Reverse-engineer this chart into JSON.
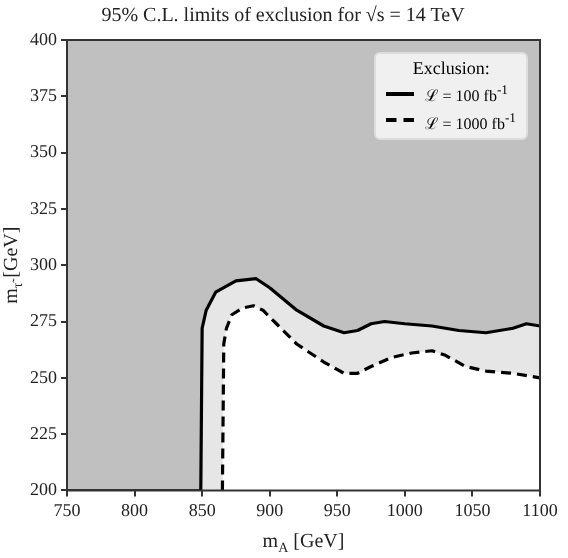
{
  "chart_data": {
    "type": "area",
    "title": "95% C.L. limits of exclusion for √s = 14 TeV",
    "xlabel": "m$_{A}$ [GeV]",
    "ylabel": "m$_{τ̃}$ [GeV]",
    "legend_title": "Exclusion:",
    "legend": "top right",
    "grid": false,
    "marker": "none",
    "xlim": [
      750,
      1100
    ],
    "xticks": [
      750,
      800,
      850,
      900,
      950,
      1000,
      1050,
      1100
    ],
    "ylim": [
      200,
      400
    ],
    "yticks": [
      200,
      225,
      250,
      275,
      300,
      325,
      350,
      375,
      400
    ],
    "series": [
      {
        "name": "ℒ = 100 fb$^{-1}$",
        "color": "#000000",
        "line_style": "solid",
        "x": [
          849,
          850,
          853,
          860,
          875,
          890,
          900,
          920,
          940,
          955,
          965,
          975,
          985,
          1000,
          1020,
          1040,
          1060,
          1080,
          1090,
          1100
        ],
        "values": [
          200,
          272,
          280,
          288,
          293,
          294,
          290,
          280,
          273,
          270,
          271,
          274,
          275,
          274,
          273,
          271,
          270,
          272,
          274,
          273
        ]
      },
      {
        "name": "ℒ = 1000 fb$^{-1}$",
        "color": "#000000",
        "line_style": "dashed",
        "x": [
          865,
          866,
          868,
          872,
          880,
          888,
          895,
          905,
          920,
          940,
          955,
          965,
          975,
          990,
          1005,
          1020,
          1030,
          1045,
          1060,
          1080,
          1100
        ],
        "values": [
          200,
          265,
          272,
          278,
          281,
          282,
          280,
          274,
          265,
          257,
          252,
          252,
          255,
          259,
          261,
          262,
          260,
          255,
          253,
          252,
          250
        ]
      }
    ]
  }
}
